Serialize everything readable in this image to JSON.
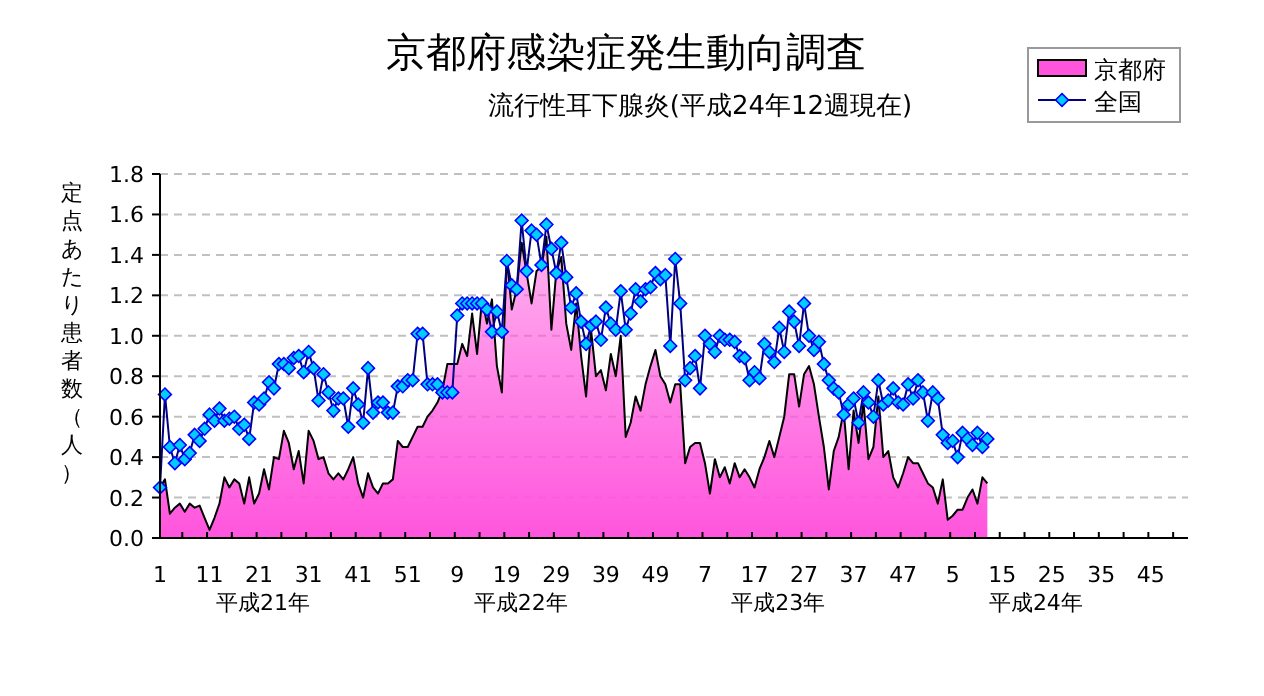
{
  "chart_data": {
    "type": "area",
    "title": "京都府感染症発生動向調査",
    "subtitle": "流行性耳下腺炎(平成24年12週現在)",
    "ylabel": "定点あたり患者数（人）",
    "annotations": [
      "平成21年",
      "平成22年",
      "平成23年",
      "平成24年"
    ],
    "categories": [
      "1",
      null,
      null,
      null,
      null,
      null,
      null,
      null,
      null,
      null,
      "11",
      null,
      null,
      null,
      null,
      null,
      null,
      null,
      null,
      null,
      "21",
      null,
      null,
      null,
      null,
      null,
      null,
      null,
      null,
      null,
      "31",
      null,
      null,
      null,
      null,
      null,
      null,
      null,
      null,
      null,
      "41",
      null,
      null,
      null,
      null,
      null,
      null,
      null,
      null,
      null,
      "51",
      null,
      null,
      null,
      null,
      null,
      null,
      null,
      null,
      null,
      "9",
      null,
      null,
      null,
      null,
      null,
      null,
      null,
      null,
      null,
      "19",
      null,
      null,
      null,
      null,
      null,
      null,
      null,
      null,
      null,
      "29",
      null,
      null,
      null,
      null,
      null,
      null,
      null,
      null,
      null,
      "39",
      null,
      null,
      null,
      null,
      null,
      null,
      null,
      null,
      null,
      "49",
      null,
      null,
      null,
      null,
      null,
      null,
      null,
      null,
      null,
      "7",
      null,
      null,
      null,
      null,
      null,
      null,
      null,
      null,
      null,
      "17",
      null,
      null,
      null,
      null,
      null,
      null,
      null,
      null,
      null,
      "27",
      null,
      null,
      null,
      null,
      null,
      null,
      null,
      null,
      null,
      "37",
      null,
      null,
      null,
      null,
      null,
      null,
      null,
      null,
      null,
      "47",
      null,
      null,
      null,
      null,
      null,
      null,
      null,
      null,
      null,
      "5",
      null,
      null,
      null,
      null,
      null,
      null,
      null,
      null,
      null,
      "15",
      null,
      null,
      null,
      null,
      null,
      null,
      null,
      null,
      null,
      "25",
      null,
      null,
      null,
      null,
      null,
      null,
      null,
      null,
      null,
      "35",
      null,
      null,
      null,
      null,
      null,
      null,
      null,
      null,
      null,
      "45",
      null,
      null,
      null,
      null,
      null,
      null,
      null
    ],
    "series": [
      {
        "name": "京都府",
        "color": "#ff55dd",
        "values": [
          0.25,
          0.29,
          0.12,
          0.15,
          0.17,
          0.13,
          0.17,
          0.15,
          0.16,
          0.1,
          0.04,
          0.1,
          0.17,
          0.3,
          0.25,
          0.29,
          0.27,
          0.17,
          0.3,
          0.17,
          0.22,
          0.34,
          0.24,
          0.4,
          0.39,
          0.53,
          0.47,
          0.34,
          0.43,
          0.27,
          0.53,
          0.48,
          0.39,
          0.4,
          0.32,
          0.29,
          0.32,
          0.29,
          0.34,
          0.4,
          0.27,
          0.2,
          0.32,
          0.25,
          0.22,
          0.27,
          0.27,
          0.29,
          0.48,
          0.45,
          0.45,
          0.5,
          0.55,
          0.55,
          0.6,
          0.63,
          0.67,
          0.73,
          0.86,
          0.86,
          0.86,
          0.96,
          0.9,
          1.11,
          0.91,
          1.18,
          1.06,
          1.18,
          0.85,
          0.72,
          1.39,
          1.13,
          1.23,
          1.46,
          1.31,
          1.16,
          1.32,
          1.34,
          1.49,
          1.03,
          1.32,
          1.39,
          1.06,
          0.93,
          1.16,
          0.9,
          0.7,
          1.03,
          0.8,
          0.83,
          0.73,
          0.91,
          0.8,
          1.0,
          0.5,
          0.57,
          0.7,
          0.63,
          0.76,
          0.85,
          0.93,
          0.8,
          0.76,
          0.67,
          0.76,
          0.76,
          0.37,
          0.45,
          0.47,
          0.47,
          0.37,
          0.22,
          0.39,
          0.3,
          0.35,
          0.27,
          0.37,
          0.3,
          0.34,
          0.3,
          0.25,
          0.34,
          0.4,
          0.48,
          0.4,
          0.5,
          0.6,
          0.81,
          0.81,
          0.65,
          0.81,
          0.85,
          0.76,
          0.6,
          0.45,
          0.24,
          0.43,
          0.5,
          0.63,
          0.34,
          0.63,
          0.47,
          0.67,
          0.39,
          0.45,
          0.7,
          0.4,
          0.43,
          0.3,
          0.25,
          0.32,
          0.4,
          0.37,
          0.37,
          0.32,
          0.27,
          0.25,
          0.17,
          0.29,
          0.09,
          0.11,
          0.14,
          0.14,
          0.2,
          0.24,
          0.17,
          0.3,
          0.27,
          null,
          null,
          null,
          null,
          null,
          null,
          null,
          null,
          null,
          null,
          null,
          null,
          null,
          null,
          null,
          null,
          null,
          null,
          null,
          null,
          null,
          null,
          null,
          null,
          null,
          null,
          null,
          null,
          null,
          null,
          null,
          null,
          null,
          null,
          null,
          null,
          null,
          null,
          null,
          null
        ]
      },
      {
        "name": "全国",
        "type": "line",
        "color": "#00ccff",
        "marker": "diamond",
        "values": [
          0.25,
          0.71,
          0.45,
          0.37,
          0.46,
          0.39,
          0.42,
          0.51,
          0.48,
          0.54,
          0.61,
          0.58,
          0.64,
          0.58,
          0.59,
          0.6,
          0.54,
          0.56,
          0.49,
          0.67,
          0.66,
          0.69,
          0.77,
          0.74,
          0.86,
          0.86,
          0.84,
          0.89,
          0.9,
          0.82,
          0.92,
          0.84,
          0.68,
          0.81,
          0.72,
          0.63,
          0.69,
          0.69,
          0.55,
          0.74,
          0.66,
          0.57,
          0.84,
          0.62,
          0.67,
          0.67,
          0.62,
          0.62,
          0.75,
          0.75,
          0.78,
          0.78,
          1.01,
          1.01,
          0.76,
          0.76,
          0.76,
          0.72,
          0.72,
          0.72,
          1.1,
          1.16,
          1.16,
          1.16,
          1.16,
          1.16,
          1.13,
          1.02,
          1.12,
          1.02,
          1.37,
          1.25,
          1.23,
          1.57,
          1.32,
          1.52,
          1.5,
          1.35,
          1.55,
          1.43,
          1.31,
          1.46,
          1.29,
          1.14,
          1.21,
          1.07,
          0.96,
          1.05,
          1.07,
          0.98,
          1.14,
          1.06,
          1.03,
          1.22,
          1.03,
          1.11,
          1.23,
          1.17,
          1.23,
          1.24,
          1.31,
          1.28,
          1.3,
          0.95,
          1.38,
          1.16,
          0.78,
          0.84,
          0.9,
          0.74,
          1.0,
          0.96,
          0.92,
          1.0,
          0.98,
          0.98,
          0.97,
          0.9,
          0.89,
          0.78,
          0.82,
          0.79,
          0.96,
          0.92,
          0.87,
          1.04,
          0.92,
          1.12,
          1.07,
          0.95,
          1.16,
          1.0,
          0.93,
          0.97,
          0.86,
          0.78,
          0.74,
          0.72,
          0.61,
          0.66,
          0.69,
          0.57,
          0.72,
          0.67,
          0.6,
          0.78,
          0.66,
          0.68,
          0.74,
          0.67,
          0.66,
          0.76,
          0.69,
          0.78,
          0.72,
          0.58,
          0.72,
          0.69,
          0.51,
          0.47,
          0.48,
          0.4,
          0.52,
          0.49,
          0.46,
          0.52,
          0.45,
          0.49,
          null,
          null,
          null,
          null,
          null,
          null,
          null,
          null,
          null,
          null,
          null,
          null,
          null,
          null,
          null,
          null,
          null,
          null,
          null,
          null,
          null,
          null,
          null,
          null,
          null,
          null,
          null,
          null,
          null,
          null,
          null,
          null,
          null,
          null,
          null,
          null,
          null,
          null,
          null,
          null
        ]
      }
    ],
    "ylim": [
      0,
      1.8
    ],
    "yticks": [
      {
        "value": 0,
        "label": "0.0"
      },
      {
        "value": 0.2,
        "label": "0.2"
      },
      {
        "value": 0.4,
        "label": "0.4"
      },
      {
        "value": 0.6,
        "label": "0.6"
      },
      {
        "value": 0.8,
        "label": "0.8"
      },
      {
        "value": 1.0,
        "label": "1.0"
      },
      {
        "value": 1.2,
        "label": "1.2"
      },
      {
        "value": 1.4,
        "label": "1.4"
      },
      {
        "value": 1.6,
        "label": "1.6"
      },
      {
        "value": 1.8,
        "label": "1.8"
      }
    ],
    "grid": "y",
    "legend": "top right"
  }
}
